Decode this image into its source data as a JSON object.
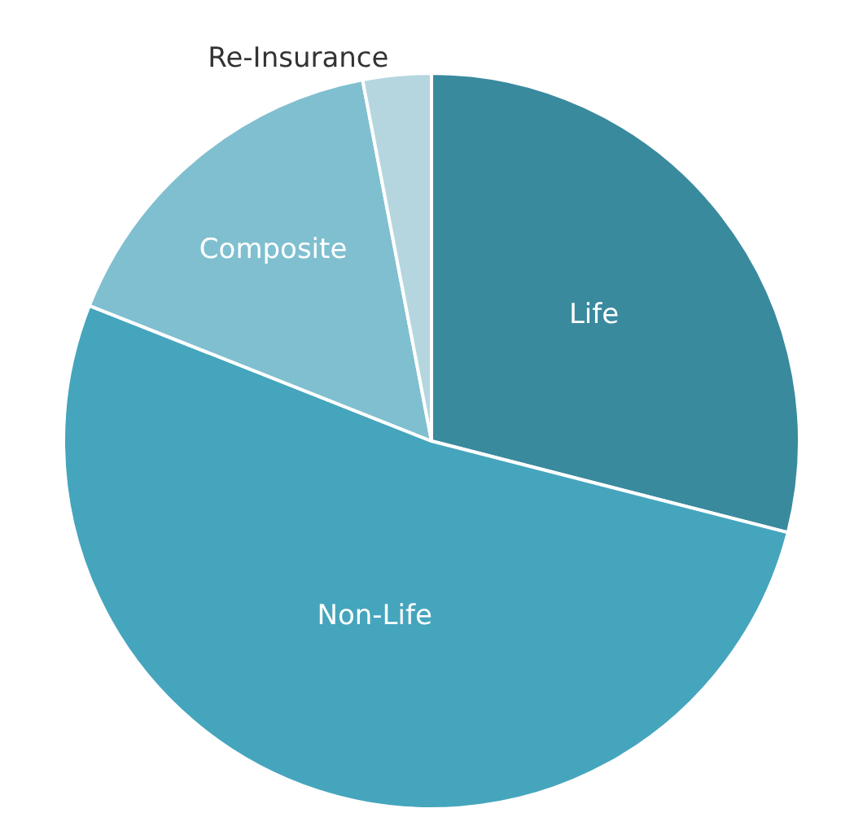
{
  "chart_data": {
    "type": "pie",
    "categories": [
      "Life",
      "Non-Life",
      "Composite",
      "Re-Insurance"
    ],
    "values": [
      29,
      52,
      16,
      3
    ],
    "colors": [
      "#3a8a9e",
      "#45a5bd",
      "#7fbfd0",
      "#b5d6df"
    ],
    "legend": false
  }
}
